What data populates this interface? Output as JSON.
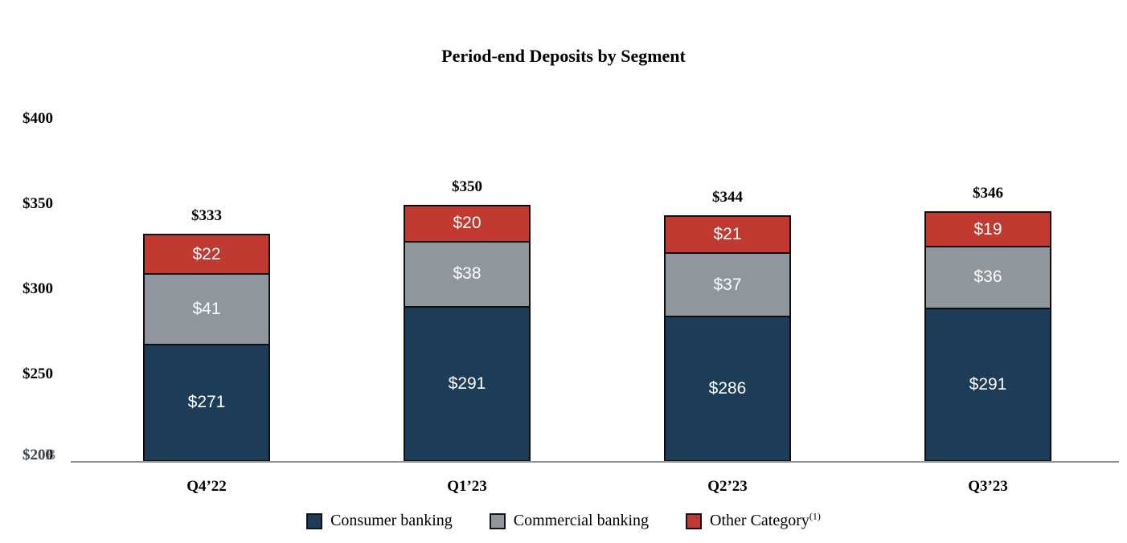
{
  "y_axis": {
    "ticks": [
      "$400",
      "$350",
      "$300",
      "$250",
      "$200"
    ],
    "overlap_label": "$20B"
  },
  "chart_data": {
    "type": "bar",
    "stacked": true,
    "title": "Period-end Deposits by Segment",
    "categories": [
      "Q4’22",
      "Q1’23",
      "Q2’23",
      "Q3’23"
    ],
    "series": [
      {
        "name": "Consumer banking",
        "color": "#1d3c57",
        "values": [
          271,
          291,
          286,
          291
        ],
        "labels": [
          "$271",
          "$291",
          "$286",
          "$291"
        ]
      },
      {
        "name": "Commercial banking",
        "color": "#90969d",
        "values": [
          41,
          38,
          37,
          36
        ],
        "labels": [
          "$41",
          "$38",
          "$37",
          "$36"
        ]
      },
      {
        "name": "Other Category",
        "footnote": "(1)",
        "color": "#c13a32",
        "values": [
          22,
          20,
          21,
          19
        ],
        "labels": [
          "$22",
          "$20",
          "$21",
          "$19"
        ]
      }
    ],
    "totals": [
      333,
      350,
      344,
      346
    ],
    "total_labels": [
      "$333",
      "$350",
      "$344",
      "$346"
    ],
    "ylim": [
      200,
      400
    ],
    "y_tick_values": [
      400,
      350,
      300,
      250,
      200
    ],
    "grid": false,
    "legend_position": "bottom"
  }
}
